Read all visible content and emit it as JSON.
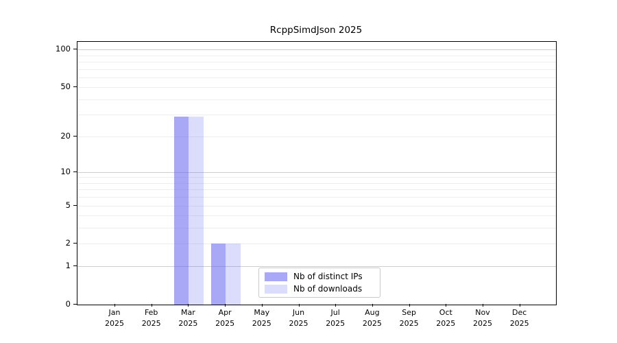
{
  "chart_data": {
    "type": "bar",
    "title": "RcppSimdJson 2025",
    "categories": [
      "Jan",
      "Feb",
      "Mar",
      "Apr",
      "May",
      "Jun",
      "Jul",
      "Aug",
      "Sep",
      "Oct",
      "Nov",
      "Dec"
    ],
    "category_year": "2025",
    "series": [
      {
        "name": "Nb of distinct IPs",
        "color": "rgba(102,102,240,0.57)",
        "values": [
          0,
          0,
          29,
          2,
          0,
          0,
          0,
          0,
          0,
          0,
          0,
          0
        ]
      },
      {
        "name": "Nb of downloads",
        "color": "rgba(102,102,240,0.23)",
        "values": [
          0,
          0,
          29,
          2,
          0,
          0,
          0,
          0,
          0,
          0,
          0,
          0
        ]
      }
    ],
    "xlabel": "",
    "ylabel": "",
    "yscale": "log1p",
    "ylim": [
      0,
      115
    ],
    "yticks": [
      0,
      1,
      2,
      5,
      10,
      20,
      50,
      100
    ],
    "minor_gridlines": [
      2,
      3,
      4,
      5,
      6,
      7,
      8,
      9,
      20,
      30,
      40,
      50,
      60,
      70,
      80,
      90
    ],
    "major_gridlines": [
      1,
      10,
      100
    ],
    "grid_minor_color": "#ededed",
    "grid_major_color": "#cdcdcd",
    "legend_position": "lower-center-inside",
    "axis_color": "#000000",
    "background_color": "#ffffff"
  }
}
